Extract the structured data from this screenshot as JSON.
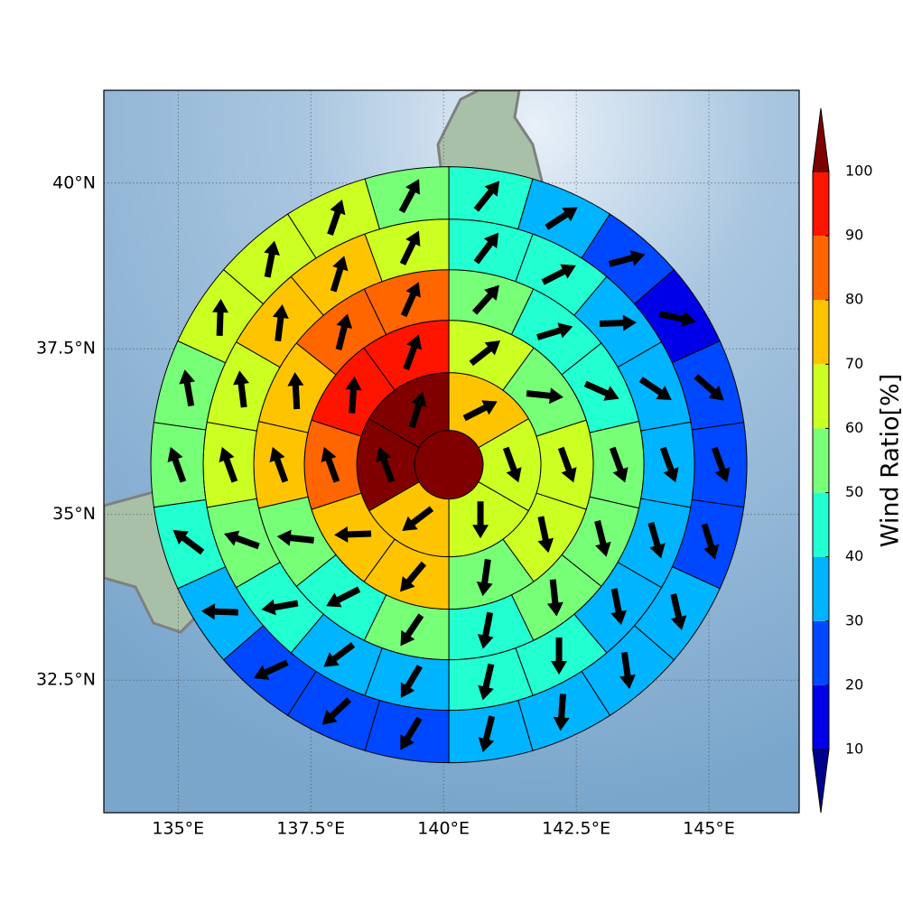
{
  "chart_data": {
    "type": "windmap",
    "xlim": [
      133.6,
      146.7
    ],
    "ylim": [
      30.5,
      41.4
    ],
    "xticks": [
      {
        "value": 135,
        "label": "135°E"
      },
      {
        "value": 137.5,
        "label": "137.5°E"
      },
      {
        "value": 140,
        "label": "140°E"
      },
      {
        "value": 142.5,
        "label": "142.5°E"
      },
      {
        "value": 145,
        "label": "145°E"
      }
    ],
    "yticks": [
      {
        "value": 32.5,
        "label": "32.5°N"
      },
      {
        "value": 35,
        "label": "35°N"
      },
      {
        "value": 37.5,
        "label": "37.5°N"
      },
      {
        "value": 40,
        "label": "40°N"
      }
    ],
    "grid": true,
    "center": {
      "lon": 140.1,
      "lat": 35.75
    },
    "center_value": 105,
    "rings": [
      {
        "values": [
          75,
          65,
          65,
          75,
          105,
          105
        ],
        "directions": [
          63,
          160,
          180,
          233,
          340,
          17
        ]
      },
      {
        "values": [
          65,
          55,
          65,
          65,
          55,
          75,
          75,
          85,
          95,
          95
        ],
        "directions": [
          52,
          96,
          160,
          168,
          188,
          220,
          268,
          340,
          4,
          20
        ]
      },
      {
        "values": [
          55,
          45,
          45,
          55,
          55,
          55,
          45,
          55,
          45,
          55,
          75,
          75,
          85,
          85
        ],
        "directions": [
          42,
          73,
          114,
          160,
          166,
          174,
          191,
          214,
          243,
          276,
          340,
          357,
          14,
          24
        ]
      },
      {
        "values": [
          45,
          45,
          35,
          35,
          35,
          35,
          35,
          45,
          45,
          35,
          35,
          45,
          55,
          65,
          65,
          75,
          75,
          65
        ],
        "directions": [
          37,
          63,
          88,
          124,
          160,
          164,
          169,
          180,
          193,
          211,
          233,
          260,
          290,
          340,
          353,
          7,
          17,
          26
        ]
      },
      {
        "values": [
          45,
          35,
          25,
          15,
          25,
          25,
          25,
          35,
          35,
          35,
          35,
          25,
          25,
          25,
          35,
          45,
          55,
          55,
          65,
          65,
          65,
          55
        ],
        "directions": [
          39,
          57,
          75,
          102,
          131,
          160,
          163,
          167,
          172,
          184,
          194,
          211,
          227,
          245,
          272,
          307,
          340,
          350,
          2,
          11,
          19,
          28
        ]
      }
    ],
    "colorbar": {
      "label": "Wind Ratio[%]",
      "ticks": [
        10,
        20,
        30,
        40,
        50,
        60,
        70,
        80,
        90,
        100
      ],
      "colors": [
        "#00008f",
        "#0000e8",
        "#0048ff",
        "#00b4ff",
        "#22ffd0",
        "#77ff77",
        "#ccff22",
        "#ffc400",
        "#ff6600",
        "#ff1400",
        "#800000"
      ]
    }
  }
}
